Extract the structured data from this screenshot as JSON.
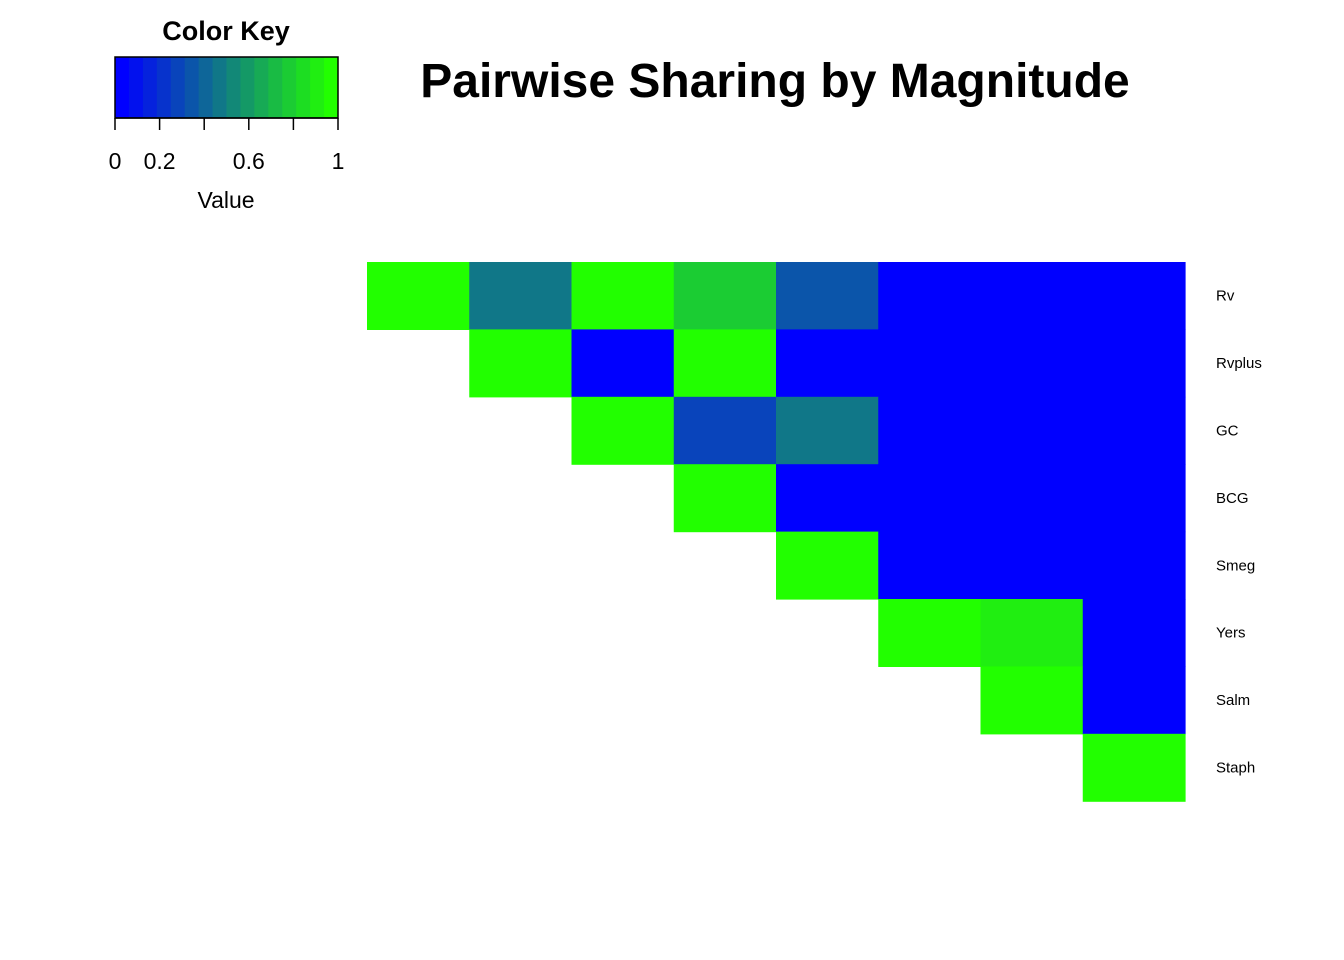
{
  "chart_data": {
    "type": "heatmap",
    "title": "Pairwise Sharing by Magnitude",
    "row_labels": [
      "Rv",
      "Rvplus",
      "GC",
      "BCG",
      "Smeg",
      "Yers",
      "Salm",
      "Staph"
    ],
    "col_labels": [],
    "shape": "upper-triangle",
    "values": [
      [
        1.0,
        0.45,
        1.0,
        0.78,
        0.35,
        0.0,
        0.0,
        0.0
      ],
      [
        null,
        1.0,
        0.05,
        1.0,
        0.0,
        0.0,
        0.0,
        0.0
      ],
      [
        null,
        null,
        1.0,
        0.3,
        0.45,
        0.0,
        0.0,
        0.0
      ],
      [
        null,
        null,
        null,
        1.0,
        0.0,
        0.0,
        0.0,
        0.0
      ],
      [
        null,
        null,
        null,
        null,
        1.0,
        0.0,
        0.0,
        0.05
      ],
      [
        null,
        null,
        null,
        null,
        null,
        1.0,
        0.88,
        0.0
      ],
      [
        null,
        null,
        null,
        null,
        null,
        null,
        1.0,
        0.0
      ],
      [
        null,
        null,
        null,
        null,
        null,
        null,
        null,
        1.0
      ]
    ],
    "color_scale": {
      "low": "#0000ff",
      "high": "#22ff00",
      "min": 0,
      "max": 1,
      "bins": 16
    },
    "color_key": {
      "title": "Color Key",
      "xlabel": "Value",
      "ticks": [
        0,
        0.2,
        0.4,
        0.6,
        0.8,
        1
      ],
      "tick_labels": [
        "0",
        "0.2",
        "",
        "0.6",
        "",
        "1"
      ]
    },
    "grid": false,
    "legend_position": "top-left"
  }
}
